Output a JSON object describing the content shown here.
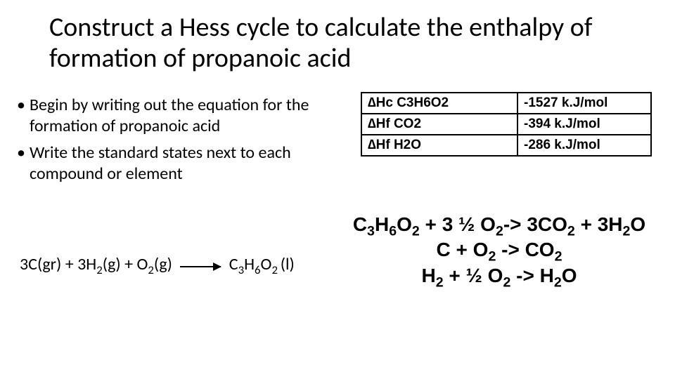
{
  "title": "Construct a Hess cycle to calculate the enthalpy of formation of propanoic acid",
  "bullets": [
    "Begin by writing out the equation for the formation of propanoic acid",
    "Write the standard states next to each compound or element"
  ],
  "table": {
    "rows": [
      [
        "∆Hc C3H6O2",
        "-1527 k.J/mol"
      ],
      [
        "∆Hf CO2",
        "-394 k.J/mol"
      ],
      [
        "∆Hf H2O",
        "-286 k.J/mol"
      ]
    ],
    "border_color": "#000000",
    "font_weight": 700,
    "font_size_pt": 14
  },
  "formation": {
    "lhs_html": "3C(gr) + 3H<sub>2</sub>(g) + O<sub>2</sub>(g)",
    "rhs_html": "C<sub>3</sub>H<sub>6</sub>O<sub>2 </sub>(l)"
  },
  "reactions_html": [
    "C<sub>3</sub>H<sub>6</sub>O<sub>2</sub> + 3 ½ O<sub>2</sub>-> 3CO<sub>2</sub> + 3H<sub>2</sub>O",
    "C + O<sub>2</sub> -> CO<sub>2</sub>",
    "H<sub>2</sub> + ½ O<sub>2</sub> -> H<sub>2</sub>O"
  ],
  "colors": {
    "text": "#000000",
    "background": "#ffffff"
  }
}
